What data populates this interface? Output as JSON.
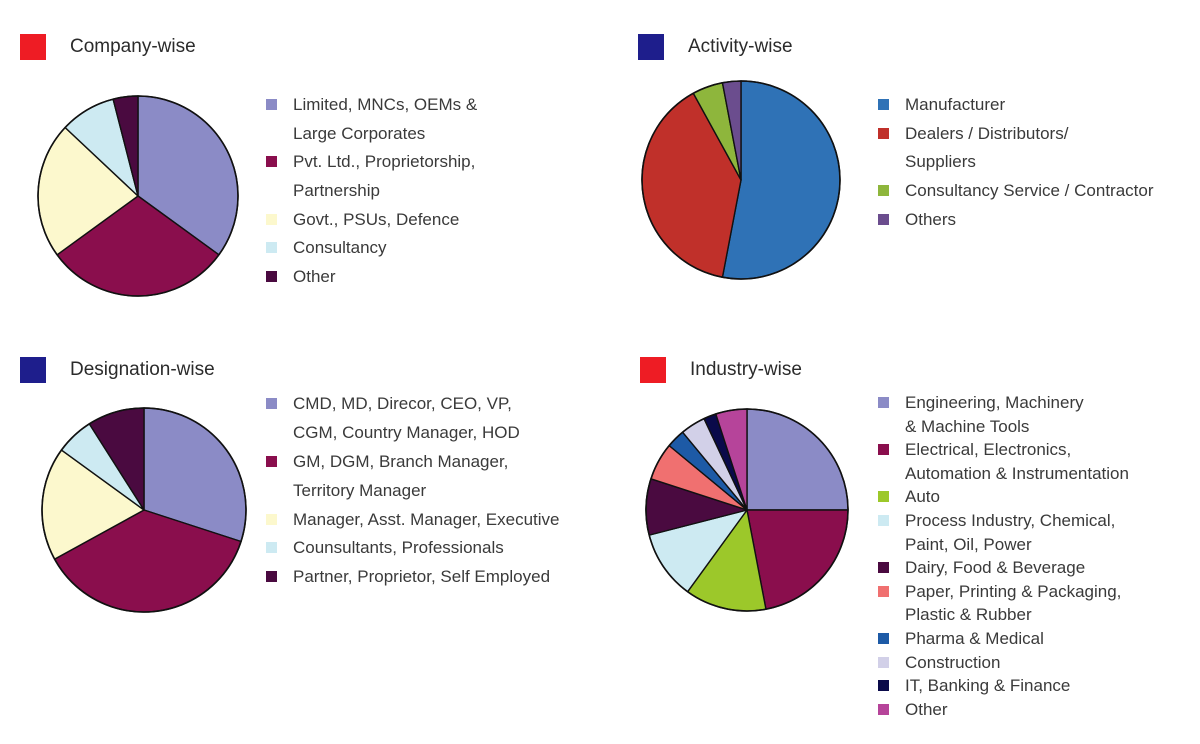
{
  "chart_data": [
    {
      "type": "pie",
      "title": "Company-wise",
      "title_color": "#ee1c24",
      "slices": [
        {
          "label": "Limited, MNCs, OEMs & Large Corporates",
          "lines": [
            "Limited, MNCs, OEMs &",
            "Large Corporates"
          ],
          "value": 35,
          "color": "#8b8bc6"
        },
        {
          "label": "Pvt. Ltd., Proprietorship, Partnership",
          "lines": [
            "Pvt. Ltd., Proprietorship,",
            "Partnership"
          ],
          "value": 30,
          "color": "#8a0e4d"
        },
        {
          "label": "Govt., PSUs, Defence",
          "lines": [
            "Govt., PSUs, Defence"
          ],
          "value": 22,
          "color": "#fcf8cd"
        },
        {
          "label": "Consultancy",
          "lines": [
            "Consultancy"
          ],
          "value": 9,
          "color": "#cdeaf2"
        },
        {
          "label": "Other",
          "lines": [
            "Other"
          ],
          "value": 4,
          "color": "#4a0a40"
        }
      ]
    },
    {
      "type": "pie",
      "title": "Activity-wise",
      "title_color": "#1e1e8c",
      "slices": [
        {
          "label": "Manufacturer",
          "lines": [
            "Manufacturer"
          ],
          "value": 53,
          "color": "#2f72b6"
        },
        {
          "label": "Dealers / Distributors/ Suppliers",
          "lines": [
            "Dealers / Distributors/",
            "Suppliers"
          ],
          "value": 39,
          "color": "#c0302a"
        },
        {
          "label": "Consultancy Service / Contractor",
          "lines": [
            "Consultancy Service / Contractor"
          ],
          "value": 5,
          "color": "#8eb63c"
        },
        {
          "label": "Others",
          "lines": [
            "Others"
          ],
          "value": 3,
          "color": "#6b4d8e"
        }
      ]
    },
    {
      "type": "pie",
      "title": "Designation-wise",
      "title_color": "#1e1e8c",
      "slices": [
        {
          "label": "CMD, MD, Direcor, CEO, VP, CGM, Country Manager, HOD",
          "lines": [
            "CMD, MD, Direcor, CEO, VP,",
            "CGM, Country Manager, HOD"
          ],
          "value": 30,
          "color": "#8b8bc6"
        },
        {
          "label": "GM, DGM, Branch Manager, Territory Manager",
          "lines": [
            "GM, DGM, Branch Manager,",
            "Territory Manager"
          ],
          "value": 37,
          "color": "#8a0e4d"
        },
        {
          "label": "Manager, Asst. Manager, Executive",
          "lines": [
            "Manager, Asst. Manager, Executive"
          ],
          "value": 18,
          "color": "#fcf8cd"
        },
        {
          "label": "Counsultants, Professionals",
          "lines": [
            "Counsultants, Professionals"
          ],
          "value": 6,
          "color": "#cdeaf2"
        },
        {
          "label": "Partner, Proprietor, Self Employed",
          "lines": [
            "Partner, Proprietor, Self Employed"
          ],
          "value": 9,
          "color": "#4a0a40"
        }
      ]
    },
    {
      "type": "pie",
      "title": "Industry-wise",
      "title_color": "#ee1c24",
      "slices": [
        {
          "label": "Engineering, Machinery & Machine Tools",
          "lines": [
            "Engineering, Machinery",
            "& Machine Tools"
          ],
          "value": 25,
          "color": "#8b8bc6"
        },
        {
          "label": "Electrical, Electronics, Automation & Instrumentation",
          "lines": [
            "Electrical, Electronics,",
            "Automation & Instrumentation"
          ],
          "value": 22,
          "color": "#8a0e4d"
        },
        {
          "label": "Auto",
          "lines": [
            "Auto"
          ],
          "value": 13,
          "color": "#9cc82a"
        },
        {
          "label": "Process Industry, Chemical, Paint, Oil, Power",
          "lines": [
            "Process Industry, Chemical,",
            "Paint, Oil, Power"
          ],
          "value": 11,
          "color": "#cdeaf2"
        },
        {
          "label": "Dairy, Food & Beverage",
          "lines": [
            "Dairy, Food & Beverage"
          ],
          "value": 9,
          "color": "#4a0a40"
        },
        {
          "label": "Paper, Printing & Packaging, Plastic & Rubber",
          "lines": [
            "Paper, Printing & Packaging,",
            "Plastic  &  Rubber"
          ],
          "value": 6,
          "color": "#f07070"
        },
        {
          "label": "Pharma & Medical",
          "lines": [
            "Pharma & Medical"
          ],
          "value": 3,
          "color": "#1d5aa6"
        },
        {
          "label": "Construction",
          "lines": [
            "Construction"
          ],
          "value": 4,
          "color": "#d2d0e8"
        },
        {
          "label": "IT, Banking & Finance",
          "lines": [
            "IT, Banking & Finance"
          ],
          "value": 2,
          "color": "#0a0a4a"
        },
        {
          "label": "Other",
          "lines": [
            "Other"
          ],
          "value": 5,
          "color": "#b6449a"
        }
      ]
    }
  ]
}
